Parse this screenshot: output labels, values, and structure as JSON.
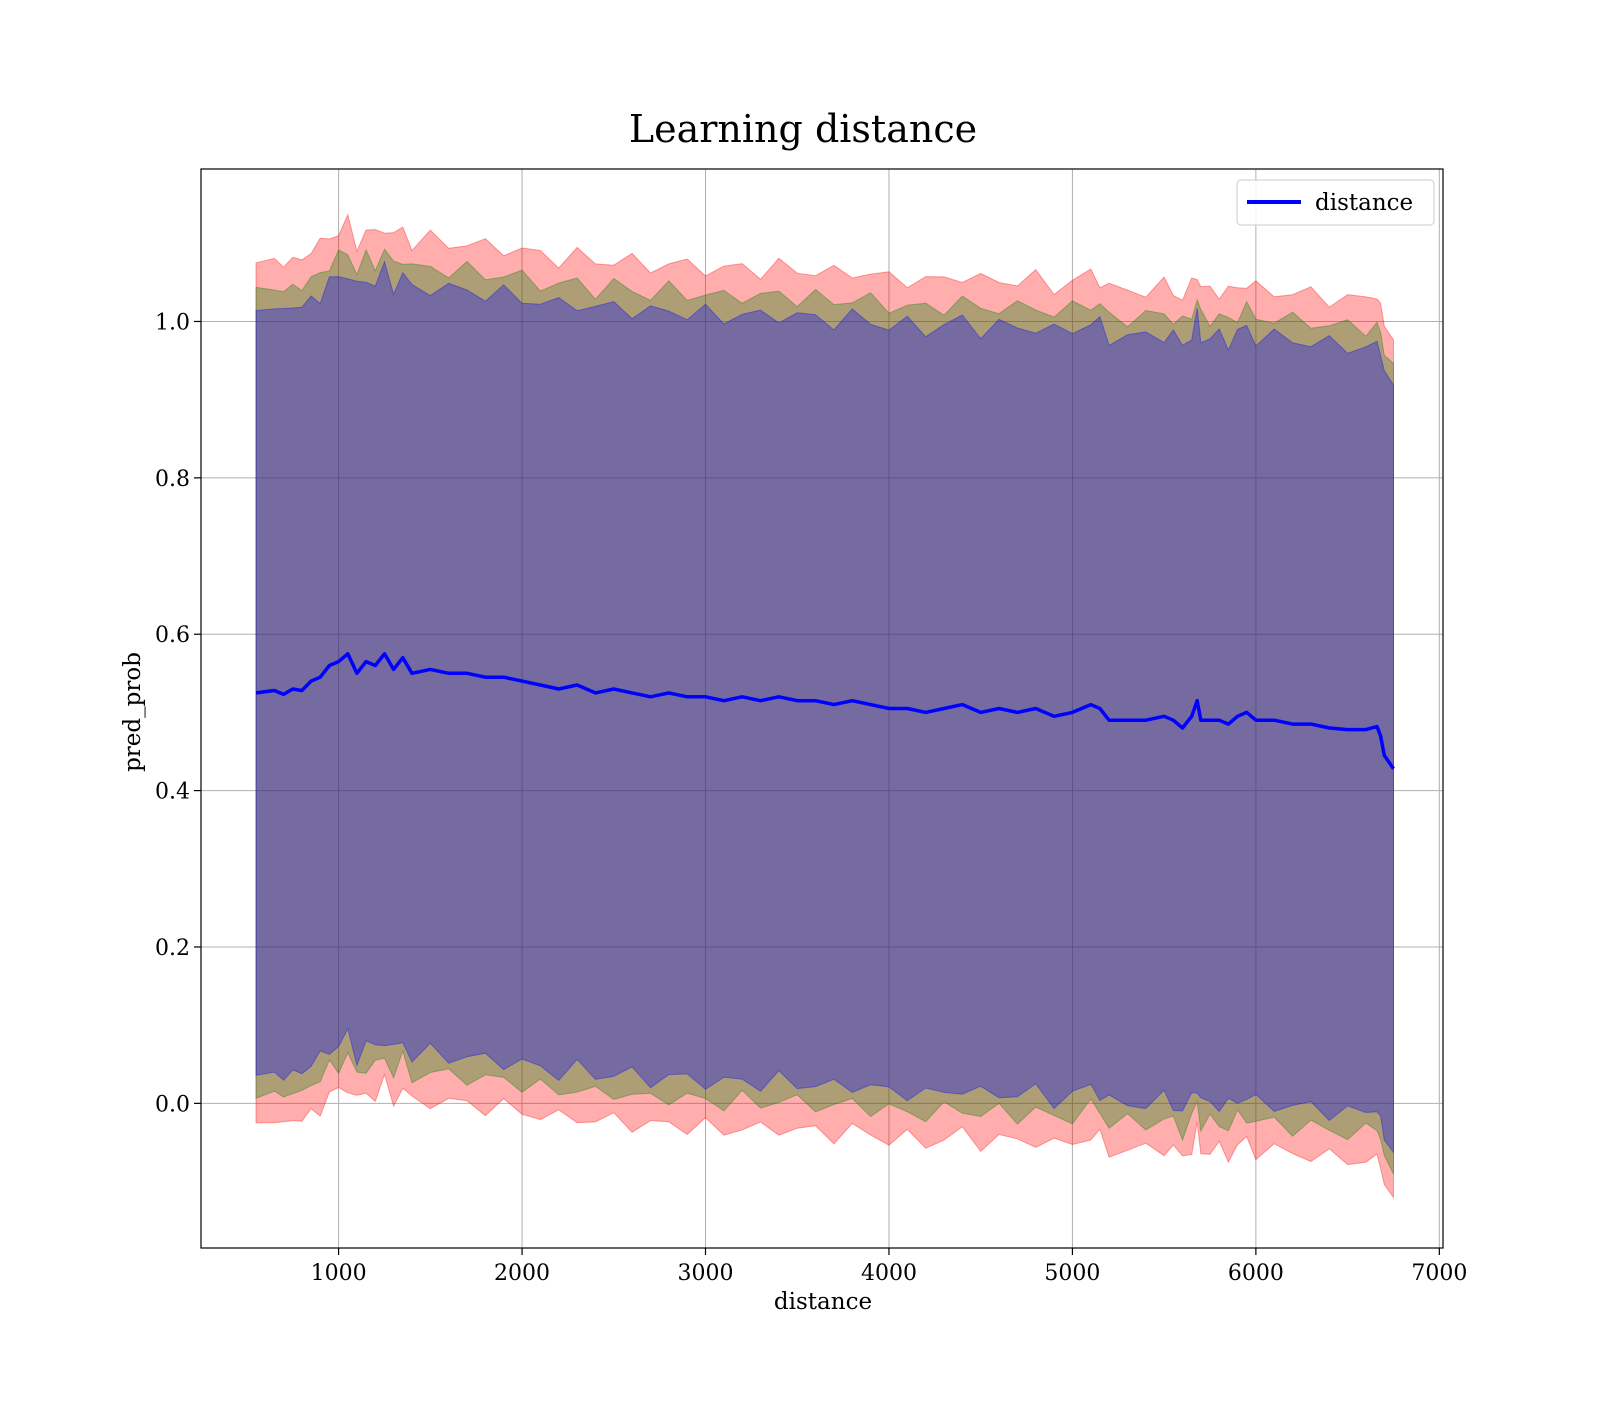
{
  "chart_data": {
    "type": "line",
    "title": "Learning distance",
    "xlabel": "distance",
    "ylabel": "pred_prob",
    "xlim": [
      250,
      7020
    ],
    "ylim": [
      -0.185,
      1.195
    ],
    "xticks": [
      1000,
      2000,
      3000,
      4000,
      5000,
      6000,
      7000
    ],
    "xtick_labels": [
      "1000",
      "2000",
      "3000",
      "4000",
      "5000",
      "6000",
      "7000"
    ],
    "yticks": [
      0.0,
      0.2,
      0.4,
      0.6,
      0.8,
      1.0
    ],
    "ytick_labels": [
      "0.0",
      "0.2",
      "0.4",
      "0.6",
      "0.8",
      "1.0"
    ],
    "grid": true,
    "legend": {
      "position": "top-right",
      "entries": [
        "distance"
      ]
    },
    "line_color": "#0000ff",
    "band_colors": [
      "#ff0000",
      "#008000",
      "#0000ff"
    ],
    "series": [
      {
        "name": "distance",
        "x": [
          550,
          650,
          700,
          750,
          800,
          850,
          900,
          950,
          1000,
          1050,
          1100,
          1150,
          1200,
          1250,
          1300,
          1350,
          1400,
          1500,
          1600,
          1700,
          1800,
          1900,
          2000,
          2100,
          2200,
          2300,
          2400,
          2500,
          2600,
          2700,
          2800,
          2900,
          3000,
          3100,
          3200,
          3300,
          3400,
          3500,
          3600,
          3700,
          3800,
          3900,
          4000,
          4100,
          4200,
          4300,
          4400,
          4500,
          4600,
          4700,
          4800,
          4900,
          5000,
          5100,
          5150,
          5200,
          5300,
          5400,
          5500,
          5550,
          5600,
          5650,
          5680,
          5700,
          5750,
          5800,
          5850,
          5900,
          5950,
          6000,
          6100,
          6200,
          6300,
          6400,
          6500,
          6600,
          6660,
          6680,
          6700,
          6750
        ],
        "y": [
          0.525,
          0.528,
          0.523,
          0.53,
          0.528,
          0.54,
          0.545,
          0.56,
          0.565,
          0.575,
          0.55,
          0.565,
          0.56,
          0.575,
          0.555,
          0.57,
          0.55,
          0.555,
          0.55,
          0.55,
          0.545,
          0.545,
          0.54,
          0.535,
          0.53,
          0.535,
          0.525,
          0.53,
          0.525,
          0.52,
          0.525,
          0.52,
          0.52,
          0.515,
          0.52,
          0.515,
          0.52,
          0.515,
          0.515,
          0.51,
          0.515,
          0.51,
          0.505,
          0.505,
          0.5,
          0.505,
          0.51,
          0.5,
          0.505,
          0.5,
          0.505,
          0.495,
          0.5,
          0.51,
          0.505,
          0.49,
          0.49,
          0.49,
          0.495,
          0.49,
          0.48,
          0.495,
          0.515,
          0.49,
          0.49,
          0.49,
          0.485,
          0.495,
          0.5,
          0.49,
          0.49,
          0.485,
          0.485,
          0.48,
          0.478,
          0.478,
          0.482,
          0.47,
          0.445,
          0.428
        ]
      }
    ],
    "bands": [
      {
        "half_width": 0.55,
        "color": "#ff0000",
        "opacity": 0.32
      },
      {
        "half_width": 0.515,
        "color": "#008000",
        "opacity": 0.32
      },
      {
        "half_width": 0.49,
        "color": "#0000ff",
        "opacity": 0.32
      }
    ]
  }
}
